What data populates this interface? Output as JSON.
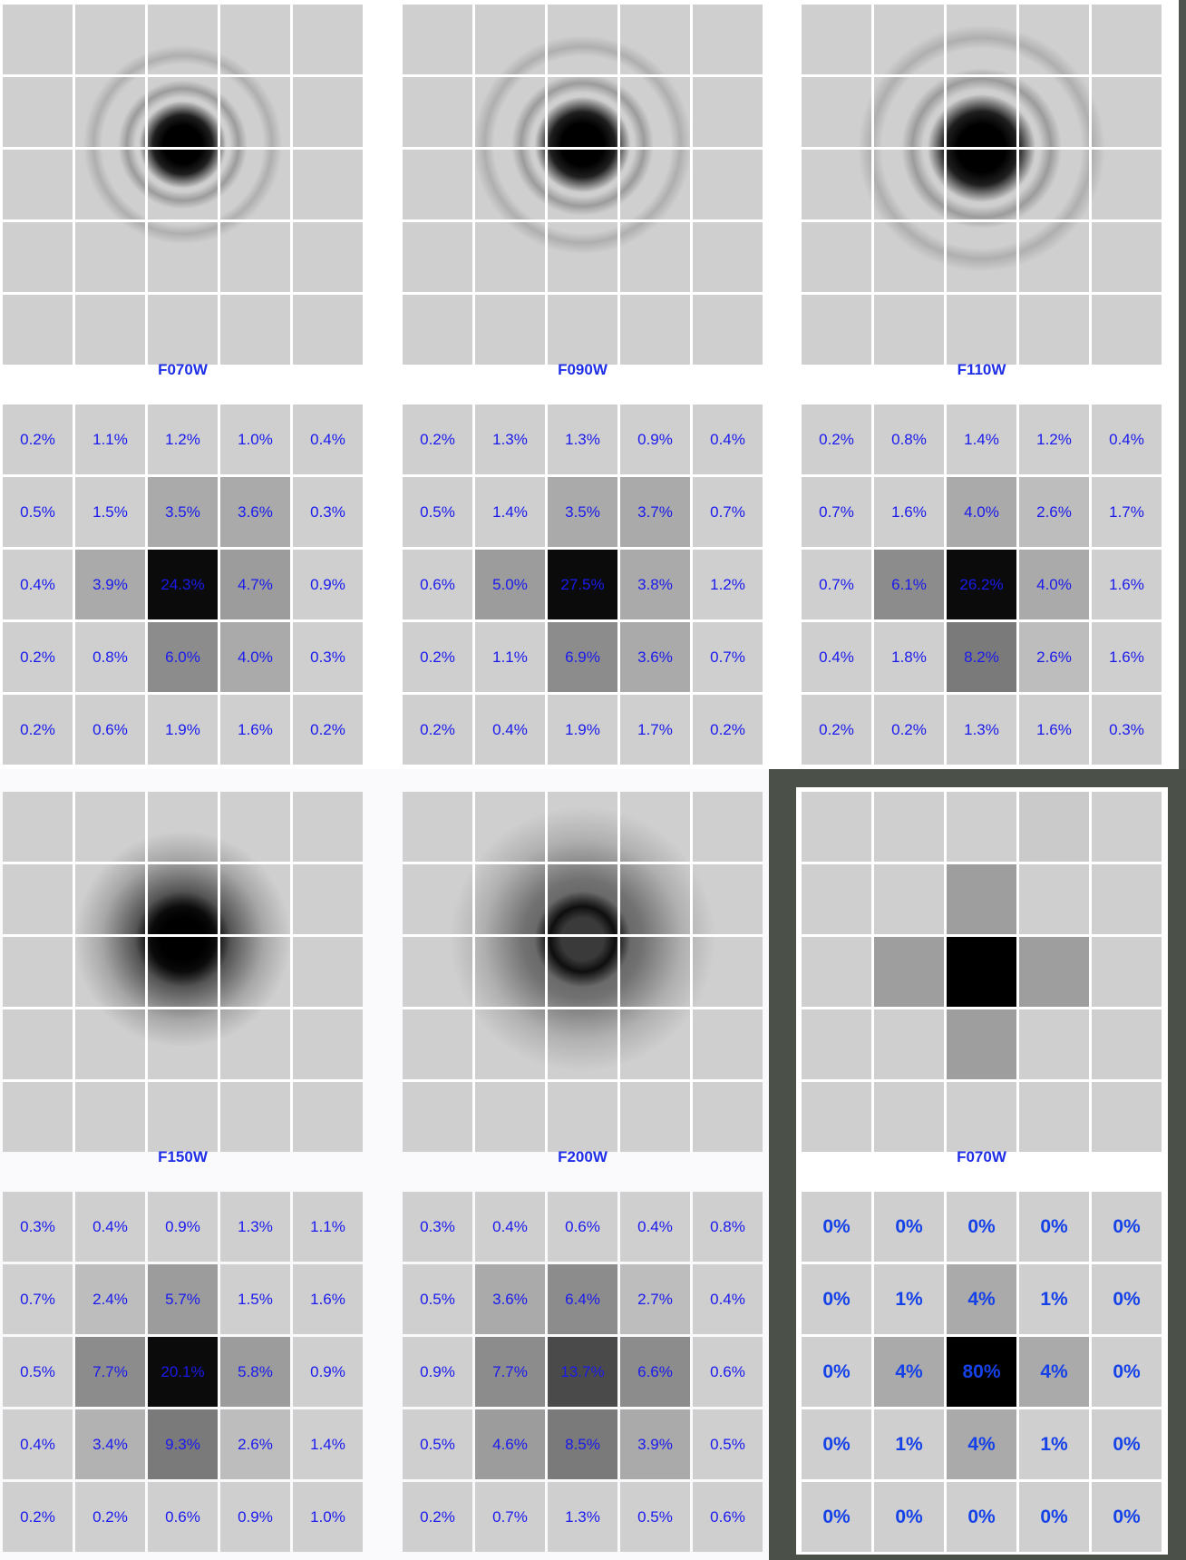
{
  "panels": [
    {
      "label": "F070W",
      "style": "normal",
      "psf": {
        "cx": 2.0,
        "cy": 1.45,
        "core_r": 0.5,
        "halo_r": 0.9,
        "halo_strength": 0.0,
        "rings": true,
        "core_color": "#000000"
      },
      "percentages": [
        [
          "0.2%",
          "1.1%",
          "1.2%",
          "1.0%",
          "0.4%"
        ],
        [
          "0.5%",
          "1.5%",
          "3.5%",
          "3.6%",
          "0.3%"
        ],
        [
          "0.4%",
          "3.9%",
          "24.3%",
          "4.7%",
          "0.9%"
        ],
        [
          "0.2%",
          "0.8%",
          "6.0%",
          "4.0%",
          "0.3%"
        ],
        [
          "0.2%",
          "0.6%",
          "1.9%",
          "1.6%",
          "0.2%"
        ]
      ]
    },
    {
      "label": "F090W",
      "style": "normal",
      "psf": {
        "cx": 2.0,
        "cy": 1.45,
        "core_r": 0.55,
        "halo_r": 1.0,
        "halo_strength": 0.0,
        "rings": true,
        "core_color": "#000000"
      },
      "percentages": [
        [
          "0.2%",
          "1.3%",
          "1.3%",
          "0.9%",
          "0.4%"
        ],
        [
          "0.5%",
          "1.4%",
          "3.5%",
          "3.7%",
          "0.7%"
        ],
        [
          "0.6%",
          "5.0%",
          "27.5%",
          "3.8%",
          "1.2%"
        ],
        [
          "0.2%",
          "1.1%",
          "6.9%",
          "3.6%",
          "0.7%"
        ],
        [
          "0.2%",
          "0.4%",
          "1.9%",
          "1.7%",
          "0.2%"
        ]
      ]
    },
    {
      "label": "F110W",
      "style": "normal",
      "psf": {
        "cx": 2.0,
        "cy": 1.5,
        "core_r": 0.62,
        "halo_r": 1.15,
        "halo_strength": 0.0,
        "rings": true,
        "core_color": "#000000"
      },
      "percentages": [
        [
          "0.2%",
          "0.8%",
          "1.4%",
          "1.2%",
          "0.4%"
        ],
        [
          "0.7%",
          "1.6%",
          "4.0%",
          "2.6%",
          "1.7%"
        ],
        [
          "0.7%",
          "6.1%",
          "26.2%",
          "4.0%",
          "1.6%"
        ],
        [
          "0.4%",
          "1.8%",
          "8.2%",
          "2.6%",
          "1.6%"
        ],
        [
          "0.2%",
          "0.2%",
          "1.3%",
          "1.6%",
          "0.3%"
        ]
      ]
    },
    {
      "label": "F150W",
      "style": "normal",
      "psf": {
        "cx": 2.0,
        "cy": 1.55,
        "core_r": 0.55,
        "halo_r": 1.55,
        "halo_strength": 0.9,
        "rings": false,
        "core_color": "#000000"
      },
      "percentages": [
        [
          "0.3%",
          "0.4%",
          "0.9%",
          "1.3%",
          "1.1%"
        ],
        [
          "0.7%",
          "2.4%",
          "5.7%",
          "1.5%",
          "1.6%"
        ],
        [
          "0.5%",
          "7.7%",
          "20.1%",
          "5.8%",
          "0.9%"
        ],
        [
          "0.4%",
          "3.4%",
          "9.3%",
          "2.6%",
          "1.4%"
        ],
        [
          "0.2%",
          "0.2%",
          "0.6%",
          "0.9%",
          "1.0%"
        ]
      ]
    },
    {
      "label": "F200W",
      "style": "normal",
      "psf": {
        "cx": 2.0,
        "cy": 1.55,
        "core_r": 0.55,
        "halo_r": 1.9,
        "halo_strength": 0.7,
        "rings": false,
        "core_color": "#3a3a3a"
      },
      "percentages": [
        [
          "0.3%",
          "0.4%",
          "0.6%",
          "0.4%",
          "0.8%"
        ],
        [
          "0.5%",
          "3.6%",
          "6.4%",
          "2.7%",
          "0.4%"
        ],
        [
          "0.9%",
          "7.7%",
          "13.7%",
          "6.6%",
          "0.6%"
        ],
        [
          "0.5%",
          "4.6%",
          "8.5%",
          "3.9%",
          "0.5%"
        ],
        [
          "0.2%",
          "0.7%",
          "1.3%",
          "0.5%",
          "0.6%"
        ]
      ]
    },
    {
      "label": "F070W",
      "style": "bold",
      "psf_blocks": [
        [
          "#cfcfcf",
          "#cfcfcf",
          "#cfcfcf",
          "#cacaca",
          "#cfcfcf"
        ],
        [
          "#cfcfcf",
          "#cfcfcf",
          "#9e9e9e",
          "#cfcfcf",
          "#cfcfcf"
        ],
        [
          "#cfcfcf",
          "#9e9e9e",
          "#000000",
          "#9e9e9e",
          "#cfcfcf"
        ],
        [
          "#cfcfcf",
          "#cfcfcf",
          "#9e9e9e",
          "#cfcfcf",
          "#cfcfcf"
        ],
        [
          "#cfcfcf",
          "#cfcfcf",
          "#cfcfcf",
          "#cfcfcf",
          "#cfcfcf"
        ]
      ],
      "percentages": [
        [
          "0%",
          "0%",
          "0%",
          "0%",
          "0%"
        ],
        [
          "0%",
          "1%",
          "4%",
          "1%",
          "0%"
        ],
        [
          "0%",
          "4%",
          "80%",
          "4%",
          "0%"
        ],
        [
          "0%",
          "1%",
          "4%",
          "1%",
          "0%"
        ],
        [
          "0%",
          "0%",
          "0%",
          "0%",
          "0%"
        ]
      ]
    }
  ],
  "colors": {
    "label_text": "#1f2fe6",
    "cell_text": "#1a1aee",
    "cell_background": "#cfcfcf",
    "cell_darkest": "#000000",
    "panel_border": "#4b5049"
  }
}
